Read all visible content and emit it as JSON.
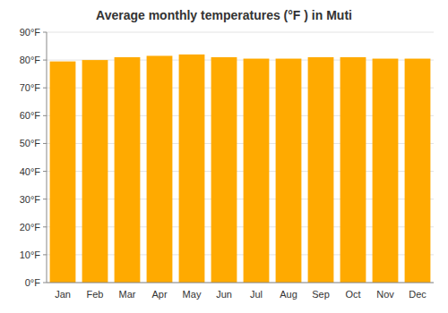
{
  "chart_data": {
    "type": "bar",
    "title": "Average monthly temperatures (°F ) in Muti",
    "categories": [
      "Jan",
      "Feb",
      "Mar",
      "Apr",
      "May",
      "Jun",
      "Jul",
      "Aug",
      "Sep",
      "Oct",
      "Nov",
      "Dec"
    ],
    "values": [
      79.5,
      80.0,
      81.0,
      81.5,
      82.0,
      81.0,
      80.5,
      80.5,
      81.0,
      81.0,
      80.5,
      80.5
    ],
    "color": "#FFAA00",
    "ylim": [
      0,
      90
    ],
    "yticks": [
      {
        "value": 0,
        "label": "0°F"
      },
      {
        "value": 10,
        "label": "10°F"
      },
      {
        "value": 20,
        "label": "20°F"
      },
      {
        "value": 30,
        "label": "30°F"
      },
      {
        "value": 40,
        "label": "40°F"
      },
      {
        "value": 50,
        "label": "50°F"
      },
      {
        "value": 60,
        "label": "60°F"
      },
      {
        "value": 70,
        "label": "70°F"
      },
      {
        "value": 80,
        "label": "80°F"
      },
      {
        "value": 90,
        "label": "90°F"
      }
    ],
    "grid": true
  }
}
